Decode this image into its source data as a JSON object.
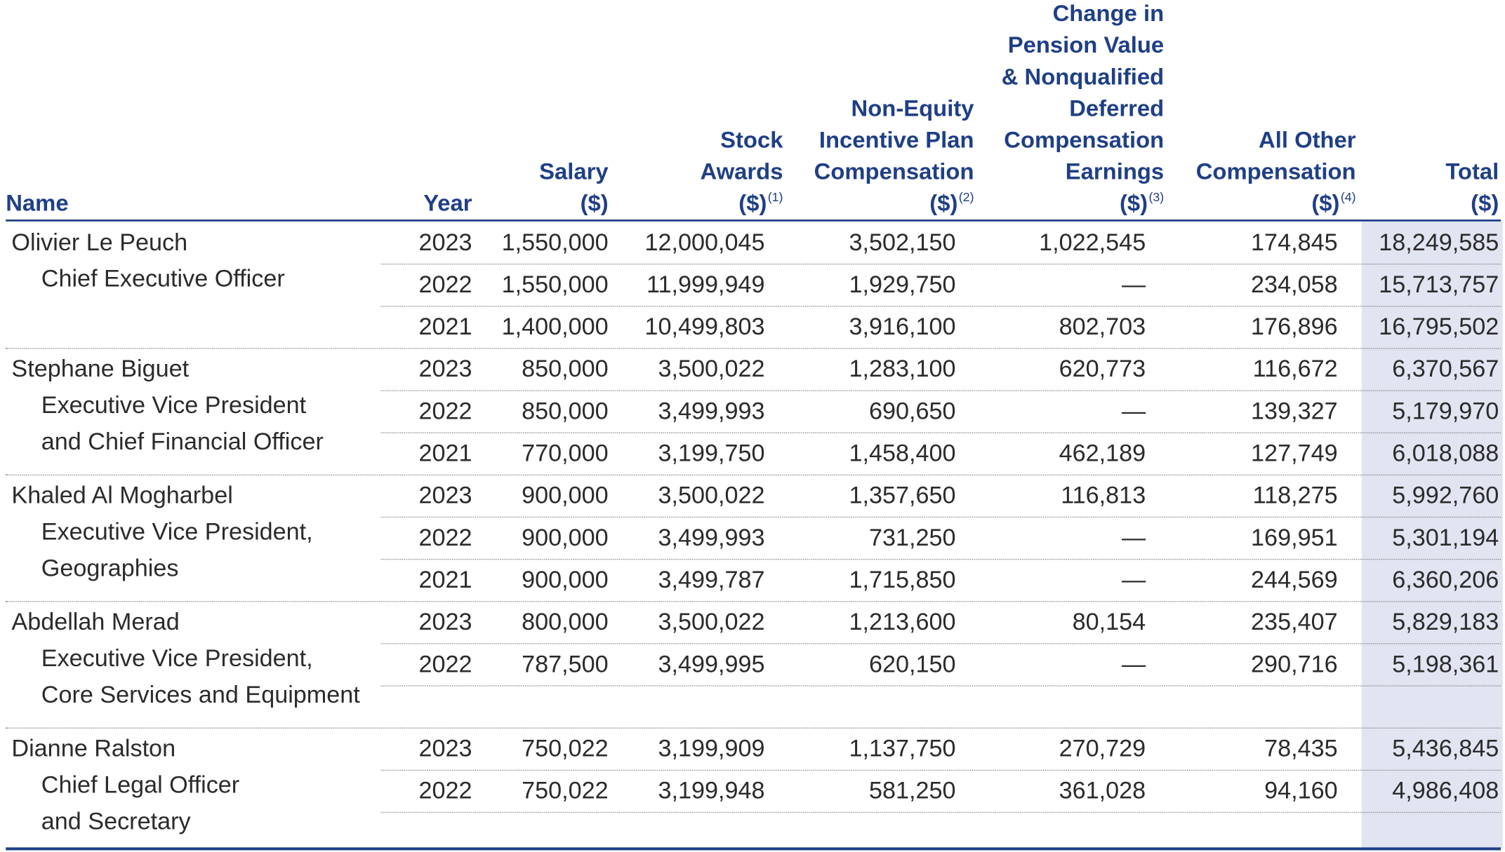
{
  "headers": {
    "name": "Name",
    "year": "Year",
    "salary": [
      "Salary",
      "($)"
    ],
    "stock": [
      "Stock",
      "Awards",
      "($)"
    ],
    "stock_note": "(1)",
    "nonequity": [
      "Non-Equity",
      "Incentive Plan",
      "Compensation",
      "($)"
    ],
    "nonequity_note": "(2)",
    "pension": [
      "Change in",
      "Pension Value",
      "& Nonqualified",
      "Deferred",
      "Compensation",
      "Earnings",
      "($)"
    ],
    "pension_note": "(3)",
    "other": [
      "All Other",
      "Compensation",
      "($)"
    ],
    "other_note": "(4)",
    "total": [
      "Total",
      "($)"
    ]
  },
  "executives": [
    {
      "name": "Olivier Le Peuch",
      "title_lines": [
        "Chief Executive Officer"
      ],
      "rows": [
        {
          "year": "2023",
          "salary": "1,550,000",
          "stock": "12,000,045",
          "nonequity": "3,502,150",
          "pension": "1,022,545",
          "other": "174,845",
          "total": "18,249,585"
        },
        {
          "year": "2022",
          "salary": "1,550,000",
          "stock": "11,999,949",
          "nonequity": "1,929,750",
          "pension": "—",
          "other": "234,058",
          "total": "15,713,757"
        },
        {
          "year": "2021",
          "salary": "1,400,000",
          "stock": "10,499,803",
          "nonequity": "3,916,100",
          "pension": "802,703",
          "other": "176,896",
          "total": "16,795,502"
        }
      ]
    },
    {
      "name": "Stephane Biguet",
      "title_lines": [
        "Executive Vice President",
        "and Chief Financial Officer"
      ],
      "rows": [
        {
          "year": "2023",
          "salary": "850,000",
          "stock": "3,500,022",
          "nonequity": "1,283,100",
          "pension": "620,773",
          "other": "116,672",
          "total": "6,370,567"
        },
        {
          "year": "2022",
          "salary": "850,000",
          "stock": "3,499,993",
          "nonequity": "690,650",
          "pension": "—",
          "other": "139,327",
          "total": "5,179,970"
        },
        {
          "year": "2021",
          "salary": "770,000",
          "stock": "3,199,750",
          "nonequity": "1,458,400",
          "pension": "462,189",
          "other": "127,749",
          "total": "6,018,088"
        }
      ]
    },
    {
      "name": "Khaled Al Mogharbel",
      "title_lines": [
        "Executive Vice President,",
        "Geographies"
      ],
      "rows": [
        {
          "year": "2023",
          "salary": "900,000",
          "stock": "3,500,022",
          "nonequity": "1,357,650",
          "pension": "116,813",
          "other": "118,275",
          "total": "5,992,760"
        },
        {
          "year": "2022",
          "salary": "900,000",
          "stock": "3,499,993",
          "nonequity": "731,250",
          "pension": "—",
          "other": "169,951",
          "total": "5,301,194"
        },
        {
          "year": "2021",
          "salary": "900,000",
          "stock": "3,499,787",
          "nonequity": "1,715,850",
          "pension": "—",
          "other": "244,569",
          "total": "6,360,206"
        }
      ]
    },
    {
      "name": "Abdellah Merad",
      "title_lines": [
        "Executive Vice President,",
        "Core Services and Equipment"
      ],
      "rows": [
        {
          "year": "2023",
          "salary": "800,000",
          "stock": "3,500,022",
          "nonequity": "1,213,600",
          "pension": "80,154",
          "other": "235,407",
          "total": "5,829,183"
        },
        {
          "year": "2022",
          "salary": "787,500",
          "stock": "3,499,995",
          "nonequity": "620,150",
          "pension": "—",
          "other": "290,716",
          "total": "5,198,361"
        }
      ]
    },
    {
      "name": "Dianne Ralston",
      "title_lines": [
        "Chief Legal Officer",
        "and Secretary"
      ],
      "rows": [
        {
          "year": "2023",
          "salary": "750,022",
          "stock": "3,199,909",
          "nonequity": "1,137,750",
          "pension": "270,729",
          "other": "78,435",
          "total": "5,436,845"
        },
        {
          "year": "2022",
          "salary": "750,022",
          "stock": "3,199,948",
          "nonequity": "581,250",
          "pension": "361,028",
          "other": "94,160",
          "total": "4,986,408"
        }
      ]
    }
  ]
}
